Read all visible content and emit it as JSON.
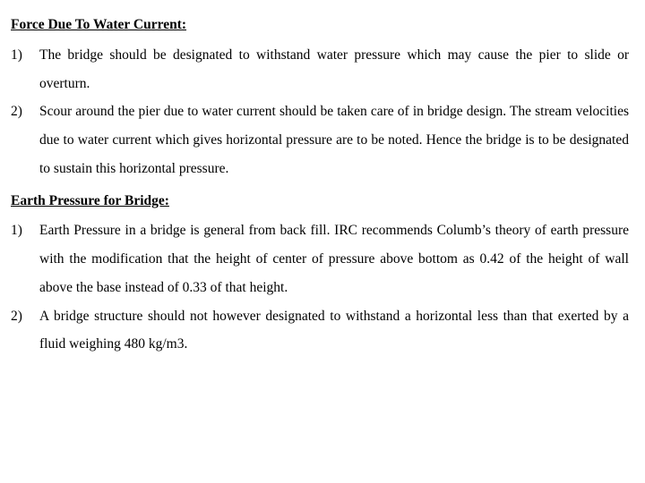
{
  "section1": {
    "heading": "Force Due To Water Current:",
    "items": [
      {
        "marker": "1)",
        "text": "The bridge should be designated to withstand water pressure which may cause the pier to slide or overturn."
      },
      {
        "marker": "2)",
        "text": "Scour around the pier due to water current should be taken care of in bridge design. The stream velocities due to water current which gives horizontal pressure are to be noted. Hence the bridge is to be designated to sustain this horizontal pressure."
      }
    ]
  },
  "section2": {
    "heading": "Earth Pressure for Bridge:",
    "items": [
      {
        "marker": "1)",
        "text": "Earth Pressure in a bridge is general from back fill. IRC recommends Columb’s theory of earth pressure with the modification that the height of center of pressure above bottom as 0.42 of the height of wall above the base instead of 0.33 of that height."
      },
      {
        "marker": "2)",
        "text": "A bridge structure should not however designated to withstand a horizontal less than that exerted by a fluid weighing 480 kg/m3."
      }
    ]
  }
}
